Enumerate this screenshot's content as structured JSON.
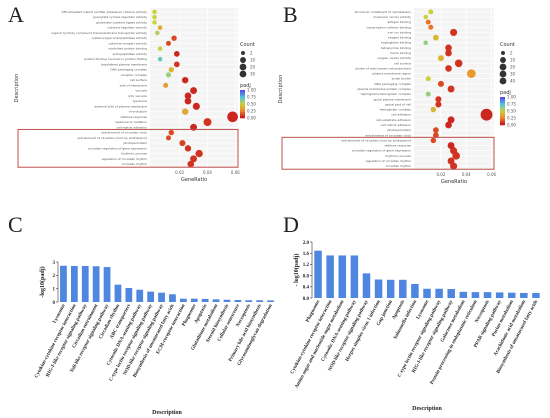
{
  "colors": {
    "bar": "#4f86e0",
    "highlight_box": "#c0504d",
    "grid": "#e8e8e8",
    "panel_bg": "#ffffff"
  },
  "panels": {
    "a": "A",
    "b": "B",
    "c": "C",
    "d": "D"
  },
  "chart_data": [
    {
      "type": "scatter",
      "panel": "A",
      "xlabel": "GeneRatio",
      "ylabel": "Description",
      "x_ticks": [
        "0.02",
        "0.04",
        "0.06"
      ],
      "xlim": [
        0,
        0.06
      ],
      "legend": {
        "count_title": "Count",
        "count_values": [
          "2",
          "10",
          "20",
          "30"
        ],
        "padj_title": "padj",
        "padj_ticks": [
          "1.00",
          "0.75",
          "0.50",
          "0.25",
          "0.00"
        ]
      },
      "highlight_rows": [
        0,
        6
      ],
      "categories": [
        "circadian rhythm",
        "regulation of circadian rhythm",
        "rhythmic process",
        "circadian regulation of gene expression",
        "photoperiodism",
        "entrainment of circadian clock by photoperiod",
        "entrainment of circadian clock",
        "cell-matrix adhesion",
        "response to radiation",
        "defense response",
        "microtubule",
        "external side of plasma membrane",
        "lysosome",
        "lytic vacuole",
        "vacuole",
        "side of membrane",
        "cell surface",
        "receptor complex",
        "DNA packaging complex",
        "basolateral plasma membrane",
        "protein binding involved in protein folding",
        "endopeptidase activity",
        "misfolded protein binding",
        "cytokine receptor activity",
        "cysteine-type endopeptidase activity",
        "organic hydroxy compound transmembrane transporter activity",
        "cytokine regulator activity",
        "glutamate-cysteine ligase activity",
        "guanylate cyclase regulator activity",
        "ATP-activated inward rectifier potassium channel activity"
      ],
      "gene_ratio": [
        0.028,
        0.03,
        0.034,
        0.026,
        0.022,
        0.012,
        0.014,
        0.03,
        0.04,
        0.058,
        0.024,
        0.032,
        0.026,
        0.026,
        0.03,
        0.01,
        0.024,
        0.012,
        0.014,
        0.018,
        0.006,
        0.018,
        0.006,
        0.012,
        0.016,
        0.004,
        0.006,
        0.002,
        0.002,
        0.002
      ],
      "count": [
        8,
        9,
        11,
        7,
        6,
        3,
        4,
        9,
        14,
        30,
        7,
        10,
        8,
        8,
        9,
        3,
        7,
        3,
        4,
        5,
        2,
        5,
        2,
        3,
        4,
        2,
        2,
        2,
        2,
        2
      ],
      "padj": [
        0.05,
        0.05,
        0.05,
        0.05,
        0.08,
        0.1,
        0.1,
        0.02,
        0.05,
        0.02,
        0.35,
        0.02,
        0.02,
        0.02,
        0.02,
        0.3,
        0.02,
        0.6,
        0.4,
        0.05,
        0.7,
        0.02,
        0.5,
        0.1,
        0.1,
        0.55,
        0.35,
        0.5,
        0.5,
        0.5
      ]
    },
    {
      "type": "scatter",
      "panel": "B",
      "xlabel": "GeneRatio",
      "ylabel": "Description",
      "x_ticks": [
        "0.02",
        "0.04",
        "0.06"
      ],
      "xlim": [
        0,
        0.06
      ],
      "legend": {
        "count_title": "Count",
        "count_values": [
          "2",
          "10",
          "20",
          "30",
          "40"
        ],
        "padj_title": "padj",
        "padj_ticks": [
          "1.00",
          "0.75",
          "0.50",
          "0.25",
          "0.00"
        ]
      },
      "highlight_rows": [
        0,
        5
      ],
      "categories": [
        "circadian rhythm",
        "regulation of circadian rhythm",
        "rhythmic process",
        "circadian regulation of gene expression",
        "defense response",
        "entrainment of circadian clock by photoperiod",
        "entrainment of circadian clock",
        "photoperiodism",
        "cell matrix adhesion",
        "cell-substrate adhesion",
        "cell adhesion",
        "hemoglobin complex",
        "apical part of cell",
        "spiral plasma membrane",
        "haptoglobin-hemoglobin complex",
        "plasma membrane protein complex",
        "DNA packaging complex",
        "brush border",
        "plasma membrane region",
        "cluster of actin-based cell projections",
        "cell surface",
        "oxygen carrier activity",
        "heme binding",
        "tetrapyrrole binding",
        "haptoglobin binding",
        "oxygen binding",
        "iron ion binding",
        "transcription cofactor binding",
        "antigen binding",
        "molecular carrier activity",
        "structural constituent of cytoskeleton"
      ],
      "gene_ratio": [
        0.03,
        0.028,
        0.032,
        0.03,
        0.028,
        0.014,
        0.016,
        0.016,
        0.026,
        0.028,
        0.056,
        0.014,
        0.018,
        0.018,
        0.01,
        0.028,
        0.02,
        0.01,
        0.044,
        0.026,
        0.034,
        0.02,
        0.026,
        0.026,
        0.008,
        0.016,
        0.03,
        0.012,
        0.01,
        0.008,
        0.012
      ],
      "count": [
        10,
        9,
        12,
        10,
        9,
        4,
        5,
        5,
        8,
        9,
        40,
        4,
        6,
        6,
        3,
        9,
        6,
        3,
        18,
        8,
        12,
        6,
        8,
        8,
        2,
        5,
        10,
        3,
        3,
        2,
        3
      ],
      "padj": [
        0.05,
        0.05,
        0.05,
        0.05,
        0.02,
        0.1,
        0.1,
        0.1,
        0.02,
        0.02,
        0.02,
        0.4,
        0.05,
        0.05,
        0.6,
        0.05,
        0.1,
        0.5,
        0.3,
        0.05,
        0.05,
        0.4,
        0.05,
        0.05,
        0.6,
        0.4,
        0.05,
        0.2,
        0.2,
        0.5,
        0.5
      ]
    },
    {
      "type": "bar",
      "panel": "C",
      "ylabel": "-log10(padj)",
      "xlabel": "Description",
      "y_ticks": [
        "0",
        "1",
        "2",
        "3"
      ],
      "ylim": [
        0,
        3
      ],
      "categories": [
        "Lysosome",
        "Cytokine-cytokine receptor interaction",
        "RIG-I-like receptor signaling pathway",
        "Circadian entrainment",
        "Toll-like receptor signaling pathway",
        "Circadian rhythm",
        "ABC transporters",
        "Cytosolic DNA-sensing pathway",
        "C-type lectin receptor signaling pathway",
        "NOD-like receptor signaling pathway",
        "Biosynthesis of unsaturated fatty acids",
        "ECM-receptor interaction",
        "Phagosome",
        "Apoptosis",
        "Glutathione metabolism",
        "Steroid biosynthesis",
        "Cellular senescence",
        "Necroptosis",
        "Primary bile acid biosynthesis",
        "Glycosaminoglycan degradation"
      ],
      "values": [
        2.72,
        2.7,
        2.7,
        2.68,
        2.62,
        1.3,
        1.05,
        0.92,
        0.78,
        0.7,
        0.58,
        0.25,
        0.25,
        0.23,
        0.2,
        0.17,
        0.15,
        0.13,
        0.13,
        0.12
      ]
    },
    {
      "type": "bar",
      "panel": "D",
      "ylabel": "- log10(padj)",
      "xlabel": "Description",
      "y_ticks": [
        "0.0",
        "0.4",
        "0.8",
        "1.2",
        "1.6",
        "2.0"
      ],
      "ylim": [
        0,
        2.0
      ],
      "categories": [
        "Phagosome",
        "Cytokine-cytokine receptor interaction",
        "Amino sugar and nucleotide sugar metabolism",
        "Cytosolic DNA-sensing pathway",
        "NOD-like receptor signaling pathway",
        "Herpes simplex virus 1 infection",
        "Gap junction",
        "Apoptosis",
        "Salmonella infection",
        "Lysosome",
        "C-type lectin receptor signaling pathway",
        "RIG-I-like receptor signaling pathway",
        "Galactose metabolism",
        "Protein processing in endoplasmic reticulum",
        "Necroptosis",
        "PPAR signaling pathway",
        "Purine metabolism",
        "Arachidonic acid metabolism",
        "Biosynthesis of unsaturated fatty acids"
      ],
      "values": [
        1.69,
        1.52,
        1.52,
        1.52,
        0.88,
        0.66,
        0.65,
        0.65,
        0.5,
        0.33,
        0.33,
        0.32,
        0.22,
        0.21,
        0.21,
        0.2,
        0.19,
        0.18,
        0.18
      ]
    }
  ]
}
